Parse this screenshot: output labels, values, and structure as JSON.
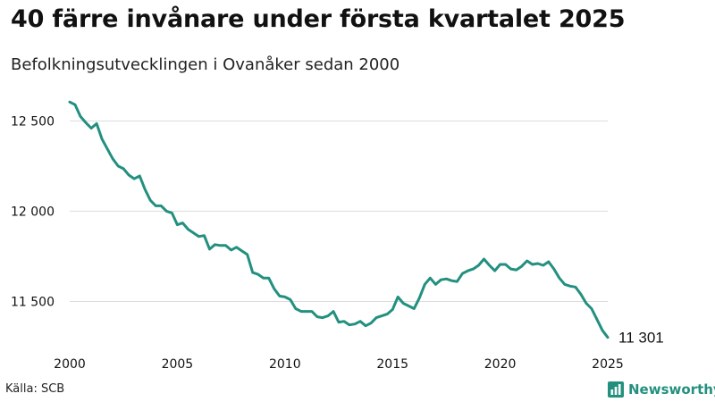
{
  "title": "40 färre invånare under första kvartalet 2025",
  "subtitle": "Befolkningsutvecklingen i Ovanåker sedan 2000",
  "source": "Källa: SCB",
  "brand": {
    "name": "Newsworthy",
    "logo_icon": "bar-chart-icon",
    "color": "#23907f"
  },
  "chart_data": {
    "type": "line",
    "title": "40 färre invånare under första kvartalet 2025",
    "subtitle": "Befolkningsutvecklingen i Ovanåker sedan 2000",
    "xlabel": "",
    "ylabel": "",
    "xlim": [
      2000,
      2025
    ],
    "ylim": [
      11230,
      12700
    ],
    "x_ticks": [
      2000,
      2005,
      2010,
      2015,
      2020,
      2025
    ],
    "x_tick_labels": [
      "2000",
      "2005",
      "2010",
      "2015",
      "2020",
      "2025"
    ],
    "y_ticks": [
      11500,
      12000,
      12500
    ],
    "y_tick_labels": [
      "11 500",
      "12 000",
      "12 500"
    ],
    "grid": "horizontal",
    "line_color": "#23907f",
    "end_label": "11 301",
    "series": [
      {
        "x": [
          2000.0,
          2000.25,
          2000.5,
          2000.75,
          2001.0,
          2001.25,
          2001.5,
          2001.75,
          2002.0,
          2002.25,
          2002.5,
          2002.75,
          2003.0,
          2003.25,
          2003.5,
          2003.75,
          2004.0,
          2004.25,
          2004.5,
          2004.75,
          2005.0,
          2005.25,
          2005.5,
          2005.75,
          2006.0,
          2006.25,
          2006.5,
          2006.75,
          2007.0,
          2007.25,
          2007.5,
          2007.75,
          2008.0,
          2008.25,
          2008.5,
          2008.75,
          2009.0,
          2009.25,
          2009.5,
          2009.75,
          2010.0,
          2010.25,
          2010.5,
          2010.75,
          2011.0,
          2011.25,
          2011.5,
          2011.75,
          2012.0,
          2012.25,
          2012.5,
          2012.75,
          2013.0,
          2013.25,
          2013.5,
          2013.75,
          2014.0,
          2014.25,
          2014.5,
          2014.75,
          2015.0,
          2015.25,
          2015.5,
          2015.75,
          2016.0,
          2016.25,
          2016.5,
          2016.75,
          2017.0,
          2017.25,
          2017.5,
          2017.75,
          2018.0,
          2018.25,
          2018.5,
          2018.75,
          2019.0,
          2019.25,
          2019.5,
          2019.75,
          2020.0,
          2020.25,
          2020.5,
          2020.75,
          2021.0,
          2021.25,
          2021.5,
          2021.75,
          2022.0,
          2022.25,
          2022.5,
          2022.75,
          2023.0,
          2023.25,
          2023.5,
          2023.75,
          2024.0,
          2024.25,
          2024.5,
          2024.75,
          2025.0
        ],
        "y": [
          12605,
          12590,
          12525,
          12490,
          12460,
          12485,
          12400,
          12345,
          12290,
          12250,
          12235,
          12200,
          12180,
          12195,
          12120,
          12060,
          12030,
          12030,
          12000,
          11990,
          11925,
          11935,
          11900,
          11880,
          11860,
          11865,
          11790,
          11815,
          11810,
          11810,
          11785,
          11800,
          11780,
          11760,
          11660,
          11650,
          11630,
          11630,
          11570,
          11530,
          11525,
          11510,
          11460,
          11445,
          11445,
          11445,
          11415,
          11410,
          11420,
          11445,
          11385,
          11390,
          11370,
          11375,
          11390,
          11365,
          11380,
          11410,
          11420,
          11430,
          11455,
          11525,
          11490,
          11475,
          11460,
          11520,
          11595,
          11630,
          11595,
          11620,
          11625,
          11615,
          11610,
          11655,
          11670,
          11680,
          11700,
          11735,
          11700,
          11670,
          11705,
          11705,
          11680,
          11675,
          11695,
          11725,
          11705,
          11710,
          11700,
          11720,
          11680,
          11630,
          11595,
          11585,
          11580,
          11540,
          11490,
          11460,
          11400,
          11340,
          11301
        ]
      }
    ]
  }
}
